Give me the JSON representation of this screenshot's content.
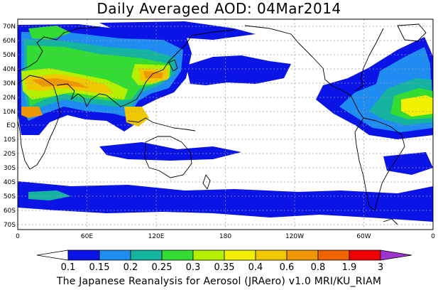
{
  "map": {
    "title": "Daily Averaged AOD: 04Mar2014",
    "longitude_ticks": [
      "0",
      "60E",
      "120E",
      "180",
      "120W",
      "60W",
      "0"
    ],
    "latitude_ticks": [
      "70N",
      "60N",
      "50N",
      "40N",
      "30N",
      "20N",
      "10N",
      "EQ",
      "10S",
      "20S",
      "30S",
      "40S",
      "50S",
      "60S",
      "70S"
    ],
    "projection": "equirectangular, 0E to 360E, 75S to 75N",
    "gridlines": "dotted",
    "colors": {
      "ocean_background": "#ffffff",
      "coastline": "#000000",
      "gridline": "#999999"
    }
  },
  "colorbar": {
    "labels": [
      "0.1",
      "0.15",
      "0.2",
      "0.25",
      "0.3",
      "0.35",
      "0.4",
      "0.6",
      "0.8",
      "1.9",
      "3"
    ],
    "colors": [
      "#ffffff",
      "#0a14e6",
      "#1e8cf0",
      "#14b4a0",
      "#32dc32",
      "#b4f000",
      "#f0f000",
      "#f0c800",
      "#f09600",
      "#f06400",
      "#f00000",
      "#a032d2"
    ]
  },
  "footer": {
    "caption": "The Japanese Reanalysis for Aerosol (JRAero) v1.0 MRI/KU_RIAM"
  }
}
